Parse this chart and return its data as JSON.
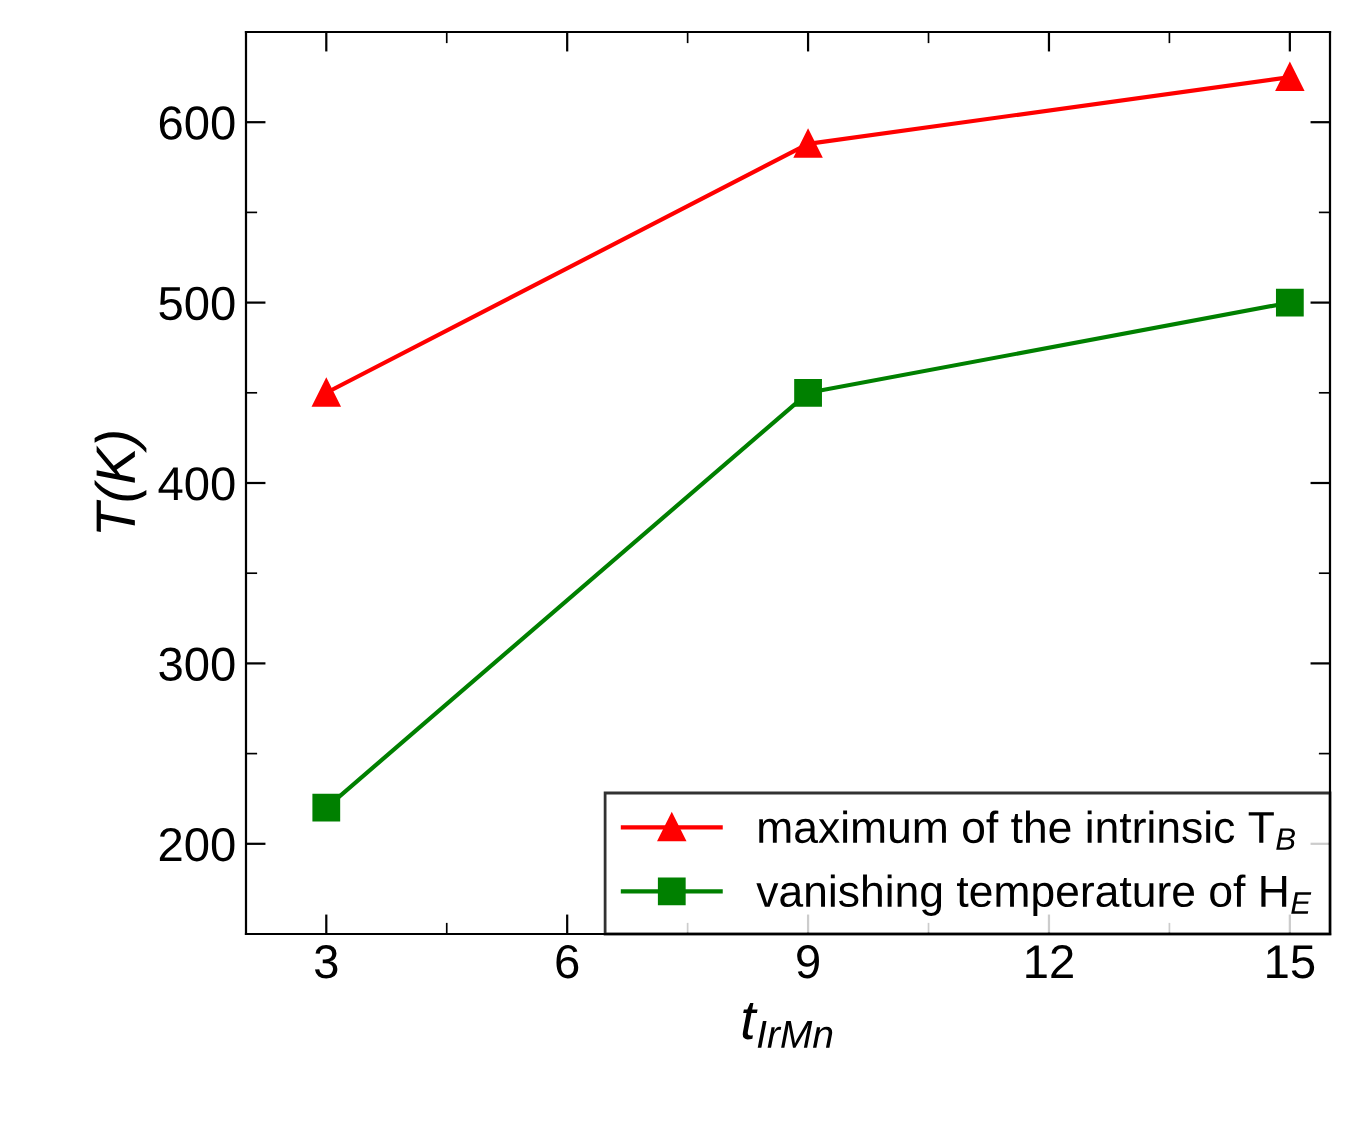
{
  "chart_data": {
    "type": "line",
    "xlabel": "t$_{IrMn}$",
    "ylabel": "T(K)",
    "x": [
      3,
      9,
      15
    ],
    "series": [
      {
        "name": "maximum of the intrinsic T$_{B}$",
        "color": "#ff0000",
        "values": [
          450,
          588,
          625
        ],
        "marker": "triangle"
      },
      {
        "name": "vanishing temperature of H$_{E}$",
        "color": "#008000",
        "values": [
          220,
          450,
          500
        ],
        "marker": "square"
      }
    ],
    "xlim": [
      2,
      15.5
    ],
    "xticks": [
      3,
      6,
      9,
      12,
      15
    ],
    "ylim": [
      150,
      650
    ],
    "yticks": [
      200,
      300,
      400,
      500,
      600
    ],
    "grid": false,
    "legend": "bottom right",
    "line_style": "solid"
  }
}
